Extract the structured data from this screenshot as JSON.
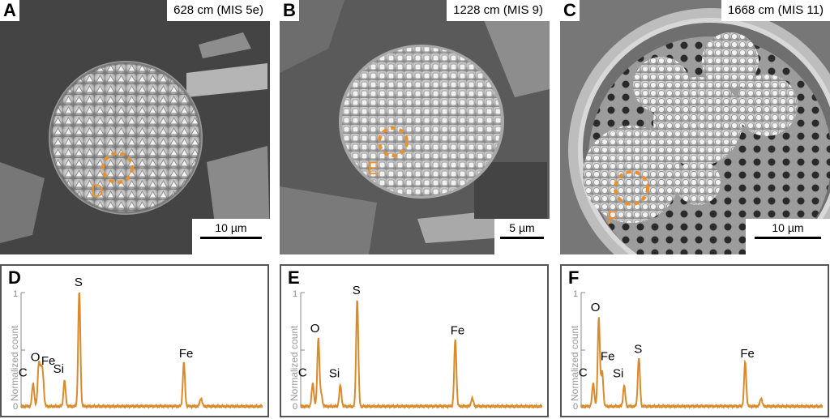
{
  "panels_top": [
    {
      "letter": "A",
      "depth": "628 cm (MIS 5e)",
      "scale": "10 µm",
      "marker": "D"
    },
    {
      "letter": "B",
      "depth": "1228 cm (MIS 9)",
      "scale": "5 µm",
      "marker": "E"
    },
    {
      "letter": "C",
      "depth": "1668 cm (MIS 11)",
      "scale": "10 µm",
      "marker": "F"
    }
  ],
  "spectra_letters": [
    "D",
    "E",
    "F"
  ],
  "axis": {
    "ylabel": "Normalized count",
    "ticks": [
      "0",
      "1"
    ]
  },
  "colors": {
    "spectrum": "#d98a2b",
    "marker": "#e8912d",
    "frame": "#555555"
  },
  "chart_data": [
    {
      "type": "line",
      "title": "",
      "ylabel": "Normalized count",
      "ylim": [
        0,
        1
      ],
      "peaks": [
        {
          "label": "C",
          "x": 0.05,
          "y": 0.2
        },
        {
          "label": "O",
          "x": 0.073,
          "y": 0.35
        },
        {
          "label": "Fe",
          "x": 0.09,
          "y": 0.26
        },
        {
          "label": "Si",
          "x": 0.18,
          "y": 0.22
        },
        {
          "label": "S",
          "x": 0.241,
          "y": 1.0
        },
        {
          "label": "Fe",
          "x": 0.674,
          "y": 0.38
        }
      ],
      "minor_peaks": [
        {
          "x": 0.082,
          "y": 0.25
        },
        {
          "x": 0.745,
          "y": 0.07
        }
      ]
    },
    {
      "type": "line",
      "title": "",
      "ylabel": "Normalized count",
      "ylim": [
        0,
        1
      ],
      "peaks": [
        {
          "label": "C",
          "x": 0.05,
          "y": 0.2
        },
        {
          "label": "O",
          "x": 0.073,
          "y": 0.6
        },
        {
          "label": "Si",
          "x": 0.164,
          "y": 0.18
        },
        {
          "label": "S",
          "x": 0.234,
          "y": 0.93
        },
        {
          "label": "Fe",
          "x": 0.64,
          "y": 0.58
        }
      ],
      "minor_peaks": [
        {
          "x": 0.085,
          "y": 0.1
        },
        {
          "x": 0.71,
          "y": 0.07
        }
      ]
    },
    {
      "type": "line",
      "title": "",
      "ylabel": "Normalized count",
      "ylim": [
        0,
        1
      ],
      "peaks": [
        {
          "label": "C",
          "x": 0.05,
          "y": 0.2
        },
        {
          "label": "O",
          "x": 0.073,
          "y": 0.78
        },
        {
          "label": "Fe",
          "x": 0.087,
          "y": 0.3
        },
        {
          "label": "Si",
          "x": 0.178,
          "y": 0.18
        },
        {
          "label": "S",
          "x": 0.239,
          "y": 0.42
        },
        {
          "label": "Fe",
          "x": 0.679,
          "y": 0.38
        }
      ],
      "minor_peaks": [
        {
          "x": 0.745,
          "y": 0.07
        }
      ]
    }
  ]
}
